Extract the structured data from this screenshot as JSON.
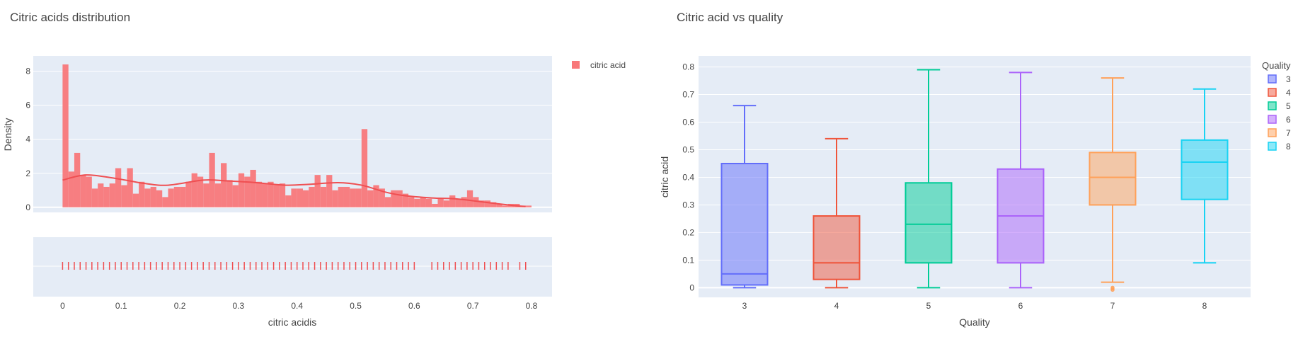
{
  "colors": {
    "plot_bg": "#e5ecf6",
    "grid": "#ffffff",
    "hist": "#f8787a",
    "hist_line": "#ef4f52",
    "rug": "#ef4f52",
    "quality": {
      "3": "#636efa",
      "4": "#ef553b",
      "5": "#00cc96",
      "6": "#ab63fa",
      "7": "#ffa15a",
      "8": "#19d3f3"
    }
  },
  "chart_data": [
    {
      "type": "bar",
      "title": "Citric acids distribution",
      "xlabel": "citric acidis",
      "ylabel": "Density",
      "xlim": [
        -0.05,
        0.835
      ],
      "ylim": [
        -0.3,
        8.9
      ],
      "x_ticks": [
        "0",
        "0.1",
        "0.2",
        "0.3",
        "0.4",
        "0.5",
        "0.6",
        "0.7",
        "0.8"
      ],
      "y_ticks": [
        "0",
        "2",
        "4",
        "6",
        "8"
      ],
      "legend": [
        "citric acid"
      ],
      "legend_position": "top-right",
      "bin_width": 0.01,
      "bins_start": 0,
      "values": [
        8.4,
        2.1,
        3.2,
        1.9,
        1.8,
        1.1,
        1.4,
        1.2,
        1.4,
        2.3,
        1.3,
        2.3,
        0.8,
        1.5,
        1.1,
        1.2,
        1.0,
        0.6,
        1.1,
        1.2,
        1.2,
        1.5,
        2.0,
        1.8,
        1.4,
        3.2,
        1.4,
        2.6,
        1.6,
        1.3,
        2.0,
        1.8,
        2.2,
        1.5,
        1.4,
        1.5,
        1.3,
        1.4,
        0.7,
        1.1,
        1.1,
        1.0,
        1.2,
        1.9,
        1.2,
        1.9,
        1.0,
        1.2,
        1.2,
        1.1,
        1.1,
        4.6,
        1.0,
        1.3,
        1.1,
        0.6,
        1.0,
        1.0,
        0.8,
        0.6,
        0.5,
        0.6,
        0.5,
        0.2,
        0.5,
        0.4,
        0.7,
        0.5,
        0.6,
        1.0,
        0.6,
        0.4,
        0.4,
        0.3,
        0.2,
        0.1,
        0.2,
        0.2,
        0.1,
        0.1
      ],
      "kde": {
        "x": [
          0,
          0.04,
          0.09,
          0.14,
          0.18,
          0.24,
          0.28,
          0.33,
          0.38,
          0.42,
          0.47,
          0.51,
          0.55,
          0.58,
          0.63,
          0.67,
          0.72,
          0.77,
          0.79
        ],
        "y": [
          1.6,
          1.9,
          1.7,
          1.4,
          1.3,
          1.6,
          1.55,
          1.45,
          1.3,
          1.35,
          1.45,
          1.3,
          0.9,
          0.7,
          0.55,
          0.5,
          0.3,
          0.1,
          0.05
        ]
      },
      "rug": {
        "xlim": [
          -0.05,
          0.835
        ],
        "x": [
          0,
          0.01,
          0.02,
          0.03,
          0.04,
          0.05,
          0.06,
          0.07,
          0.08,
          0.09,
          0.1,
          0.11,
          0.12,
          0.13,
          0.14,
          0.15,
          0.16,
          0.17,
          0.18,
          0.19,
          0.2,
          0.21,
          0.22,
          0.23,
          0.24,
          0.25,
          0.26,
          0.27,
          0.28,
          0.29,
          0.3,
          0.31,
          0.32,
          0.33,
          0.34,
          0.35,
          0.36,
          0.37,
          0.38,
          0.39,
          0.4,
          0.41,
          0.42,
          0.43,
          0.44,
          0.45,
          0.46,
          0.47,
          0.48,
          0.49,
          0.5,
          0.51,
          0.52,
          0.53,
          0.54,
          0.55,
          0.56,
          0.57,
          0.58,
          0.59,
          0.6,
          0.63,
          0.64,
          0.65,
          0.66,
          0.67,
          0.68,
          0.69,
          0.7,
          0.71,
          0.72,
          0.73,
          0.74,
          0.75,
          0.76,
          0.78,
          0.79
        ]
      }
    },
    {
      "type": "box",
      "title": "Citric acid vs quality",
      "xlabel": "Quality",
      "ylabel": "citric acid",
      "ylim": [
        -0.035,
        0.84
      ],
      "y_ticks": [
        "0",
        "0.1",
        "0.2",
        "0.3",
        "0.4",
        "0.5",
        "0.6",
        "0.7",
        "0.8"
      ],
      "categories": [
        "3",
        "4",
        "5",
        "6",
        "7",
        "8"
      ],
      "legend_title": "Quality",
      "legend_position": "top-right",
      "series": [
        {
          "name": "3",
          "min": 0,
          "q1": 0.01,
          "median": 0.05,
          "q3": 0.45,
          "max": 0.66
        },
        {
          "name": "4",
          "min": 0,
          "q1": 0.03,
          "median": 0.09,
          "q3": 0.26,
          "max": 0.54
        },
        {
          "name": "5",
          "min": 0,
          "q1": 0.09,
          "median": 0.23,
          "q3": 0.38,
          "max": 0.79
        },
        {
          "name": "6",
          "min": 0,
          "q1": 0.09,
          "median": 0.26,
          "q3": 0.43,
          "max": 0.78
        },
        {
          "name": "7",
          "min": 0.02,
          "q1": 0.3,
          "median": 0.4,
          "q3": 0.49,
          "max": 0.76,
          "outliers": [
            0,
            0,
            0
          ]
        },
        {
          "name": "8",
          "min": 0.09,
          "q1": 0.32,
          "median": 0.455,
          "q3": 0.535,
          "max": 0.72
        }
      ]
    }
  ]
}
